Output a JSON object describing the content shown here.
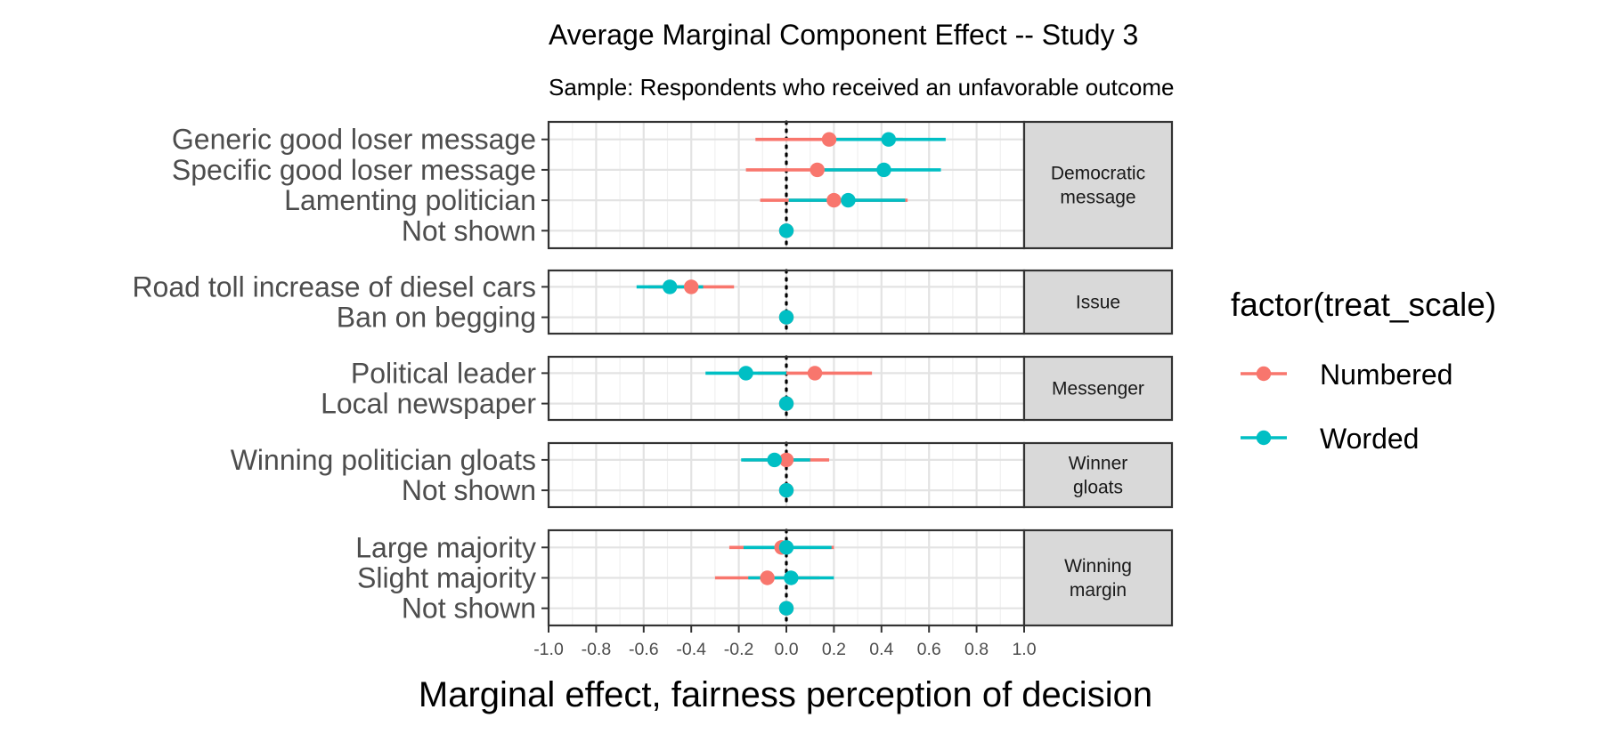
{
  "colors": {
    "numbered": "#F8766D",
    "worded": "#00BFC4"
  },
  "chart_data": {
    "type": "dot-whisker",
    "title": "Average Marginal Component Effect -- Study 3",
    "subtitle": "Sample: Respondents who received an unfavorable outcome",
    "xlabel": "Marginal effect, fairness perception of decision",
    "xlim": [
      -1.0,
      1.0
    ],
    "xticks": [
      "-1.0",
      "-0.8",
      "-0.6",
      "-0.4",
      "-0.2",
      "0.0",
      "0.2",
      "0.4",
      "0.6",
      "0.8",
      "1.0"
    ],
    "reference_line": 0.0,
    "legend": {
      "title": "factor(treat_scale)",
      "entries": [
        "Numbered",
        "Worded"
      ]
    },
    "panels": [
      {
        "strip": "Democratic\nmessage",
        "rows": [
          {
            "label": "Generic good loser message",
            "Numbered": {
              "est": 0.18,
              "lo": -0.13,
              "hi": 0.49
            },
            "Worded": {
              "est": 0.43,
              "lo": 0.18,
              "hi": 0.67
            }
          },
          {
            "label": "Specific good loser message",
            "Numbered": {
              "est": 0.13,
              "lo": -0.17,
              "hi": 0.44
            },
            "Worded": {
              "est": 0.41,
              "lo": 0.16,
              "hi": 0.65
            }
          },
          {
            "label": "Lamenting politician",
            "Numbered": {
              "est": 0.2,
              "lo": -0.11,
              "hi": 0.51
            },
            "Worded": {
              "est": 0.26,
              "lo": 0.01,
              "hi": 0.5
            }
          },
          {
            "label": "Not shown",
            "Numbered": {
              "est": 0.0,
              "lo": 0.0,
              "hi": 0.0
            },
            "Worded": {
              "est": 0.0,
              "lo": 0.0,
              "hi": 0.0
            }
          }
        ]
      },
      {
        "strip": "Issue",
        "rows": [
          {
            "label": "Road toll increase of diesel cars",
            "Numbered": {
              "est": -0.4,
              "lo": -0.58,
              "hi": -0.22
            },
            "Worded": {
              "est": -0.49,
              "lo": -0.63,
              "hi": -0.35
            }
          },
          {
            "label": "Ban on begging",
            "Numbered": {
              "est": 0.0,
              "lo": 0.0,
              "hi": 0.0
            },
            "Worded": {
              "est": 0.0,
              "lo": 0.0,
              "hi": 0.0
            }
          }
        ]
      },
      {
        "strip": "Messenger",
        "rows": [
          {
            "label": "Political leader",
            "Numbered": {
              "est": 0.12,
              "lo": -0.12,
              "hi": 0.36
            },
            "Worded": {
              "est": -0.17,
              "lo": -0.34,
              "hi": 0.0
            }
          },
          {
            "label": "Local newspaper",
            "Numbered": {
              "est": 0.0,
              "lo": 0.0,
              "hi": 0.0
            },
            "Worded": {
              "est": 0.0,
              "lo": 0.0,
              "hi": 0.0
            }
          }
        ]
      },
      {
        "strip": "Winner\ngloats",
        "rows": [
          {
            "label": "Winning politician gloats",
            "Numbered": {
              "est": 0.0,
              "lo": -0.18,
              "hi": 0.18
            },
            "Worded": {
              "est": -0.05,
              "lo": -0.19,
              "hi": 0.1
            }
          },
          {
            "label": "Not shown",
            "Numbered": {
              "est": 0.0,
              "lo": 0.0,
              "hi": 0.0
            },
            "Worded": {
              "est": 0.0,
              "lo": 0.0,
              "hi": 0.0
            }
          }
        ]
      },
      {
        "strip": "Winning\nmargin",
        "rows": [
          {
            "label": "Large majority",
            "Numbered": {
              "est": -0.02,
              "lo": -0.24,
              "hi": 0.2
            },
            "Worded": {
              "est": 0.0,
              "lo": -0.18,
              "hi": 0.19
            }
          },
          {
            "label": "Slight majority",
            "Numbered": {
              "est": -0.08,
              "lo": -0.3,
              "hi": 0.14
            },
            "Worded": {
              "est": 0.02,
              "lo": -0.16,
              "hi": 0.2
            }
          },
          {
            "label": "Not shown",
            "Numbered": {
              "est": 0.0,
              "lo": 0.0,
              "hi": 0.0
            },
            "Worded": {
              "est": 0.0,
              "lo": 0.0,
              "hi": 0.0
            }
          }
        ]
      }
    ]
  }
}
